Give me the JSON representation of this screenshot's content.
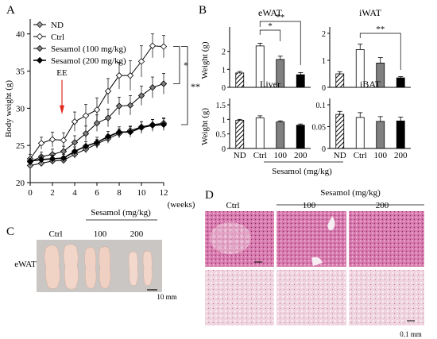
{
  "panels": {
    "A": "A",
    "B": "B",
    "C": "C",
    "D": "D"
  },
  "chart_data": [
    {
      "panel": "A",
      "type": "line",
      "xlabel": "(weeks)",
      "ylabel": "Body weight (g)",
      "x": [
        0,
        1,
        2,
        3,
        4,
        5,
        6,
        7,
        8,
        9,
        10,
        11,
        12
      ],
      "xticks": [
        "0",
        "2",
        "4",
        "6",
        "8",
        "10",
        "12"
      ],
      "yticks": [
        "20",
        "25",
        "30",
        "35",
        "40"
      ],
      "xlim": [
        0,
        12
      ],
      "ylim": [
        20,
        42
      ],
      "annotation": "EE",
      "annotation_x": 3,
      "significance": [
        "*",
        "**"
      ],
      "legend_position": "top-left",
      "series": [
        {
          "name": "ND",
          "marker": "open-diamond",
          "color": "#9a9a9a",
          "values": [
            22.3,
            22.6,
            22.9,
            23.0,
            23.8,
            24.5,
            25.2,
            25.9,
            26.6,
            27.0,
            27.5,
            27.8,
            28.0
          ],
          "errors": [
            0.4,
            0.4,
            0.4,
            0.4,
            0.5,
            0.5,
            0.6,
            0.6,
            0.6,
            0.6,
            0.7,
            0.7,
            0.7
          ]
        },
        {
          "name": "Ctrl",
          "marker": "open-diamond",
          "color": "#ffffff",
          "values": [
            23.2,
            25.3,
            25.8,
            25.7,
            28.2,
            29.0,
            29.8,
            32.3,
            34.4,
            34.4,
            36.3,
            38.4,
            38.3
          ],
          "errors": [
            0.6,
            0.8,
            1.0,
            1.0,
            1.3,
            1.5,
            1.6,
            1.7,
            1.8,
            2.0,
            2.1,
            1.6,
            1.5
          ]
        },
        {
          "name": "Sesamol (100 mg/kg)",
          "marker": "diamond",
          "color": "#7f7f7f",
          "values": [
            22.8,
            23.5,
            23.8,
            24.2,
            25.4,
            26.6,
            28.0,
            28.7,
            30.3,
            30.4,
            31.7,
            32.8,
            33.3
          ],
          "errors": [
            0.5,
            0.6,
            0.7,
            0.7,
            0.9,
            1.0,
            1.1,
            1.2,
            1.2,
            1.3,
            1.3,
            1.4,
            1.4
          ]
        },
        {
          "name": "Sesamol (200 mg/kg)",
          "marker": "diamond",
          "color": "#000000",
          "values": [
            22.9,
            23.1,
            23.2,
            23.3,
            24.2,
            24.9,
            25.4,
            26.2,
            26.8,
            26.8,
            27.4,
            27.7,
            27.8
          ],
          "errors": [
            0.4,
            0.5,
            0.5,
            0.5,
            0.6,
            0.6,
            0.7,
            0.7,
            0.7,
            0.7,
            0.8,
            0.8,
            0.8
          ]
        }
      ]
    },
    {
      "panel": "B",
      "type": "bar",
      "title": "eWAT",
      "ylabel": "Weight (g)",
      "categories": [
        "ND",
        "Ctrl",
        "100",
        "200"
      ],
      "values": [
        0.8,
        2.3,
        1.55,
        0.7
      ],
      "errors": [
        0.08,
        0.15,
        0.18,
        0.12
      ],
      "yticks": [
        "0",
        "1",
        "2"
      ],
      "ylim": [
        0,
        3
      ],
      "significance": [
        "*",
        "**"
      ]
    },
    {
      "panel": "B",
      "type": "bar",
      "title": "iWAT",
      "categories": [
        "ND",
        "Ctrl",
        "100",
        "200"
      ],
      "values": [
        0.5,
        1.4,
        0.9,
        0.35
      ],
      "errors": [
        0.08,
        0.2,
        0.2,
        0.05
      ],
      "yticks": [
        "0",
        "1",
        "2"
      ],
      "ylim": [
        0,
        2
      ],
      "significance": [
        "**"
      ]
    },
    {
      "panel": "B",
      "type": "bar",
      "title": "Liver",
      "ylabel": "Weight (g)",
      "categories": [
        "ND",
        "Ctrl",
        "100",
        "200"
      ],
      "values": [
        0.97,
        1.05,
        0.91,
        0.8
      ],
      "errors": [
        0.03,
        0.07,
        0.04,
        0.04
      ],
      "yticks": [
        "0",
        "0.5",
        "1",
        "1.5"
      ],
      "ylim": [
        0,
        1.5
      ]
    },
    {
      "panel": "B",
      "type": "bar",
      "title": "iBAT",
      "categories": [
        "ND",
        "Ctrl",
        "100",
        "200"
      ],
      "values": [
        0.078,
        0.071,
        0.062,
        0.063
      ],
      "errors": [
        0.007,
        0.011,
        0.011,
        0.009
      ],
      "yticks": [
        "0",
        "0.05",
        "0.1"
      ],
      "ylim": [
        0,
        0.1
      ]
    }
  ],
  "bar_group_label": "Sesamol (mg/kg)",
  "photo_C": {
    "group_label": "Sesamol (mg/kg)",
    "columns": [
      "Ctrl",
      "100",
      "200"
    ],
    "row_label": "eWAT",
    "scale": "10 mm"
  },
  "histology_D": {
    "group_label": "Sesamol (mg/kg)",
    "columns": [
      "Ctrl",
      "100",
      "200"
    ],
    "scale": "0.1 mm"
  }
}
